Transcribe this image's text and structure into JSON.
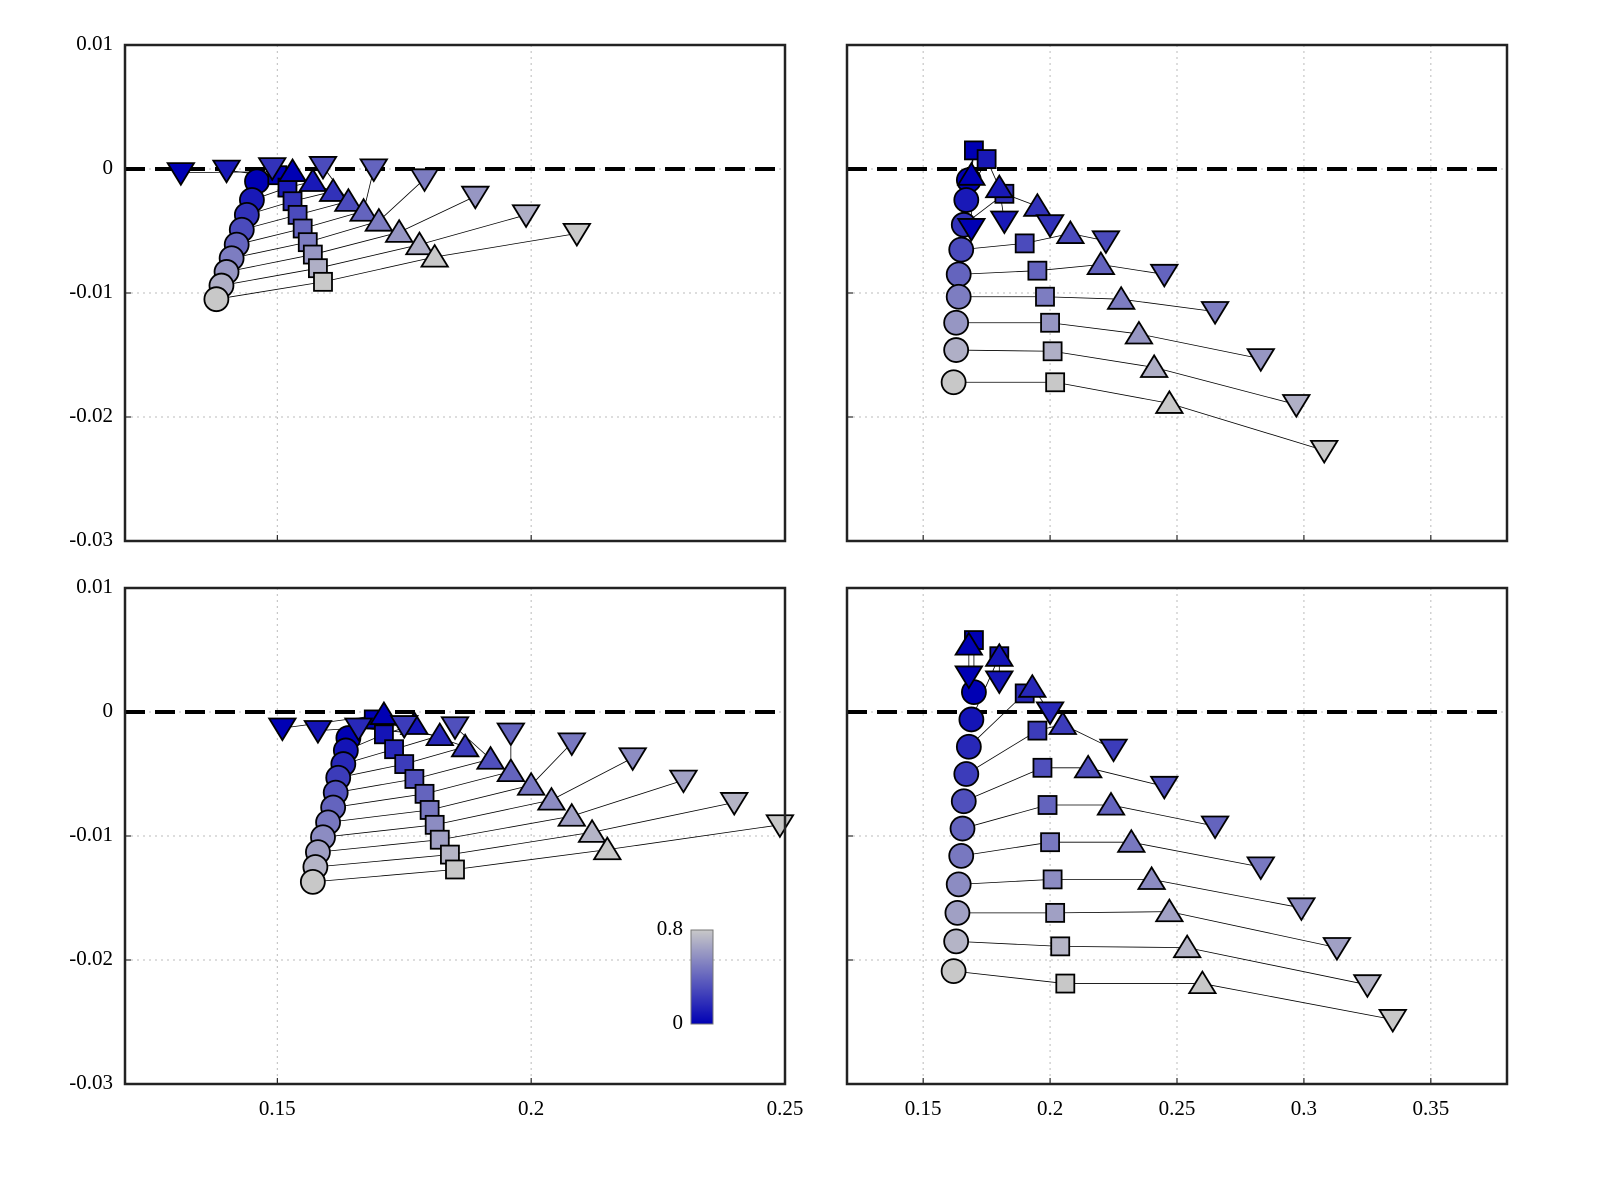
{
  "chart_data": [
    {
      "type": "scatter",
      "xlim": [
        0.12,
        0.25
      ],
      "ylim": [
        -0.03,
        0.01
      ],
      "xticks": [
        0.15,
        0.2,
        0.25
      ],
      "yticks": [
        -0.03,
        -0.02,
        -0.01,
        0,
        0.01
      ],
      "xticklabels": false,
      "yticklabels": true,
      "grid": true,
      "hline": 0,
      "c": [
        0,
        0.1,
        0.2,
        0.3,
        0.4,
        0.5,
        0.6,
        0.7,
        0.8
      ],
      "series": [
        {
          "marker": "circle",
          "x": [
            0.146,
            0.145,
            0.144,
            0.143,
            0.142,
            0.141,
            0.14,
            0.139,
            0.138
          ],
          "y": [
            -0.001,
            -0.0025,
            -0.0037,
            -0.0049,
            -0.0061,
            -0.0072,
            -0.0083,
            -0.0094,
            -0.0105
          ]
        },
        {
          "marker": "square",
          "x": [
            0.15,
            0.152,
            0.153,
            0.154,
            0.155,
            0.156,
            0.157,
            0.158,
            0.159
          ],
          "y": [
            -0.0005,
            -0.0015,
            -0.0026,
            -0.0037,
            -0.0048,
            -0.0059,
            -0.0069,
            -0.008,
            -0.0091
          ]
        },
        {
          "marker": "triangle-up",
          "x": [
            0.153,
            0.157,
            0.161,
            0.164,
            0.167,
            0.17,
            0.174,
            0.178,
            0.181
          ],
          "y": [
            -0.0002,
            -0.001,
            -0.0018,
            -0.0026,
            -0.0034,
            -0.0042,
            -0.0051,
            -0.0061,
            -0.0071
          ]
        },
        {
          "marker": "triangle-down",
          "x": [
            0.131,
            0.14,
            0.149,
            0.159,
            0.169,
            0.179,
            0.189,
            0.199,
            0.209
          ],
          "y": [
            -0.0003,
            -0.0001,
            0.0001,
            0.0002,
            0.0,
            -0.0008,
            -0.0022,
            -0.0037,
            -0.0052
          ]
        }
      ]
    },
    {
      "type": "scatter",
      "xlim": [
        0.12,
        0.38
      ],
      "ylim": [
        -0.03,
        0.01
      ],
      "xticks": [
        0.15,
        0.2,
        0.25,
        0.3,
        0.35
      ],
      "yticks": [
        -0.03,
        -0.02,
        -0.01,
        0,
        0.01
      ],
      "xticklabels": false,
      "yticklabels": false,
      "grid": true,
      "hline": 0,
      "c": [
        0,
        0.1,
        0.2,
        0.3,
        0.4,
        0.5,
        0.6,
        0.7,
        0.8
      ],
      "series": [
        {
          "marker": "circle",
          "x": [
            0.168,
            0.167,
            0.166,
            0.165,
            0.164,
            0.164,
            0.163,
            0.163,
            0.162
          ],
          "y": [
            -0.0009,
            -0.0025,
            -0.0045,
            -0.0065,
            -0.0085,
            -0.0103,
            -0.0124,
            -0.0146,
            -0.0172
          ]
        },
        {
          "marker": "square",
          "x": [
            0.17,
            0.175,
            0.182,
            0.19,
            0.195,
            0.198,
            0.2,
            0.201,
            0.202
          ],
          "y": [
            0.0015,
            0.0008,
            -0.002,
            -0.006,
            -0.0082,
            -0.0103,
            -0.0124,
            -0.0147,
            -0.0172
          ]
        },
        {
          "marker": "triangle-up",
          "x": [
            0.169,
            0.18,
            0.195,
            0.208,
            0.22,
            0.228,
            0.235,
            0.241,
            0.247
          ],
          "y": [
            -0.0005,
            -0.0015,
            -0.003,
            -0.0052,
            -0.0077,
            -0.0105,
            -0.0133,
            -0.016,
            -0.0189
          ]
        },
        {
          "marker": "triangle-down",
          "x": [
            0.169,
            0.182,
            0.2,
            0.222,
            0.245,
            0.265,
            0.283,
            0.297,
            0.308
          ],
          "y": [
            -0.0048,
            -0.0042,
            -0.0045,
            -0.0058,
            -0.0085,
            -0.0115,
            -0.0153,
            -0.019,
            -0.0227
          ]
        }
      ]
    },
    {
      "type": "scatter",
      "xlim": [
        0.12,
        0.25
      ],
      "ylim": [
        -0.03,
        0.01
      ],
      "xticks": [
        0.15,
        0.2,
        0.25
      ],
      "yticks": [
        -0.03,
        -0.02,
        -0.01,
        0,
        0.01
      ],
      "xticklabels": true,
      "yticklabels": true,
      "grid": true,
      "hline": 0,
      "c": [
        0,
        0.08,
        0.16,
        0.24,
        0.32,
        0.4,
        0.48,
        0.56,
        0.64,
        0.72,
        0.8
      ],
      "colorbar": {
        "lim": [
          0,
          0.8
        ],
        "ticks": [
          0,
          0.8
        ]
      },
      "series": [
        {
          "marker": "circle",
          "x": [
            0.164,
            0.1635,
            0.163,
            0.162,
            0.1615,
            0.161,
            0.16,
            0.159,
            0.158,
            0.1575,
            0.157
          ],
          "y": [
            -0.0021,
            -0.0031,
            -0.0042,
            -0.0053,
            -0.0065,
            -0.0077,
            -0.0089,
            -0.0101,
            -0.0113,
            -0.0125,
            -0.0137
          ]
        },
        {
          "marker": "square",
          "x": [
            0.169,
            0.171,
            0.173,
            0.175,
            0.177,
            0.179,
            0.18,
            0.181,
            0.182,
            0.184,
            0.185
          ],
          "y": [
            -0.0006,
            -0.0018,
            -0.003,
            -0.0042,
            -0.0054,
            -0.0066,
            -0.0079,
            -0.0091,
            -0.0103,
            -0.0115,
            -0.0127
          ]
        },
        {
          "marker": "triangle-up",
          "x": [
            0.171,
            0.177,
            0.182,
            0.187,
            0.192,
            0.196,
            0.2,
            0.204,
            0.208,
            0.212,
            0.215
          ],
          "y": [
            -0.0002,
            -0.001,
            -0.0019,
            -0.0028,
            -0.0038,
            -0.0048,
            -0.0059,
            -0.0071,
            -0.0084,
            -0.0097,
            -0.0111
          ]
        },
        {
          "marker": "triangle-down",
          "x": [
            0.151,
            0.158,
            0.166,
            0.175,
            0.185,
            0.196,
            0.208,
            0.22,
            0.23,
            0.24,
            0.249
          ],
          "y": [
            -0.0013,
            -0.0015,
            -0.0013,
            -0.0011,
            -0.0012,
            -0.0017,
            -0.0025,
            -0.0037,
            -0.0055,
            -0.0073,
            -0.0091
          ]
        }
      ]
    },
    {
      "type": "scatter",
      "xlim": [
        0.12,
        0.38
      ],
      "ylim": [
        -0.03,
        0.01
      ],
      "xticks": [
        0.15,
        0.2,
        0.25,
        0.3,
        0.35
      ],
      "yticks": [
        -0.03,
        -0.02,
        -0.01,
        0,
        0.01
      ],
      "xticklabels": true,
      "yticklabels": false,
      "grid": true,
      "hline": 0,
      "c": [
        0,
        0.08,
        0.16,
        0.24,
        0.32,
        0.4,
        0.48,
        0.56,
        0.64,
        0.72,
        0.8
      ],
      "series": [
        {
          "marker": "circle",
          "x": [
            0.17,
            0.169,
            0.168,
            0.167,
            0.166,
            0.1655,
            0.165,
            0.164,
            0.1635,
            0.163,
            0.162
          ],
          "y": [
            0.0016,
            -0.0006,
            -0.0028,
            -0.005,
            -0.0072,
            -0.0094,
            -0.0116,
            -0.0139,
            -0.0162,
            -0.0185,
            -0.0209
          ]
        },
        {
          "marker": "square",
          "x": [
            0.17,
            0.18,
            0.19,
            0.195,
            0.197,
            0.199,
            0.2,
            0.201,
            0.202,
            0.204,
            0.206
          ],
          "y": [
            0.0058,
            0.0045,
            0.0015,
            -0.0015,
            -0.0045,
            -0.0075,
            -0.0105,
            -0.0135,
            -0.0162,
            -0.0189,
            -0.0219
          ]
        },
        {
          "marker": "triangle-up",
          "x": [
            0.168,
            0.18,
            0.193,
            0.205,
            0.215,
            0.224,
            0.232,
            0.24,
            0.247,
            0.254,
            0.26
          ],
          "y": [
            0.0054,
            0.0045,
            0.002,
            -0.001,
            -0.0045,
            -0.0075,
            -0.0105,
            -0.0135,
            -0.0161,
            -0.019,
            -0.0219
          ]
        },
        {
          "marker": "triangle-down",
          "x": [
            0.168,
            0.18,
            0.2,
            0.225,
            0.245,
            0.265,
            0.283,
            0.299,
            0.313,
            0.325,
            0.335
          ],
          "y": [
            0.0029,
            0.0025,
            0.0,
            -0.003,
            -0.006,
            -0.0092,
            -0.0125,
            -0.0158,
            -0.019,
            -0.022,
            -0.0248
          ]
        }
      ]
    }
  ]
}
